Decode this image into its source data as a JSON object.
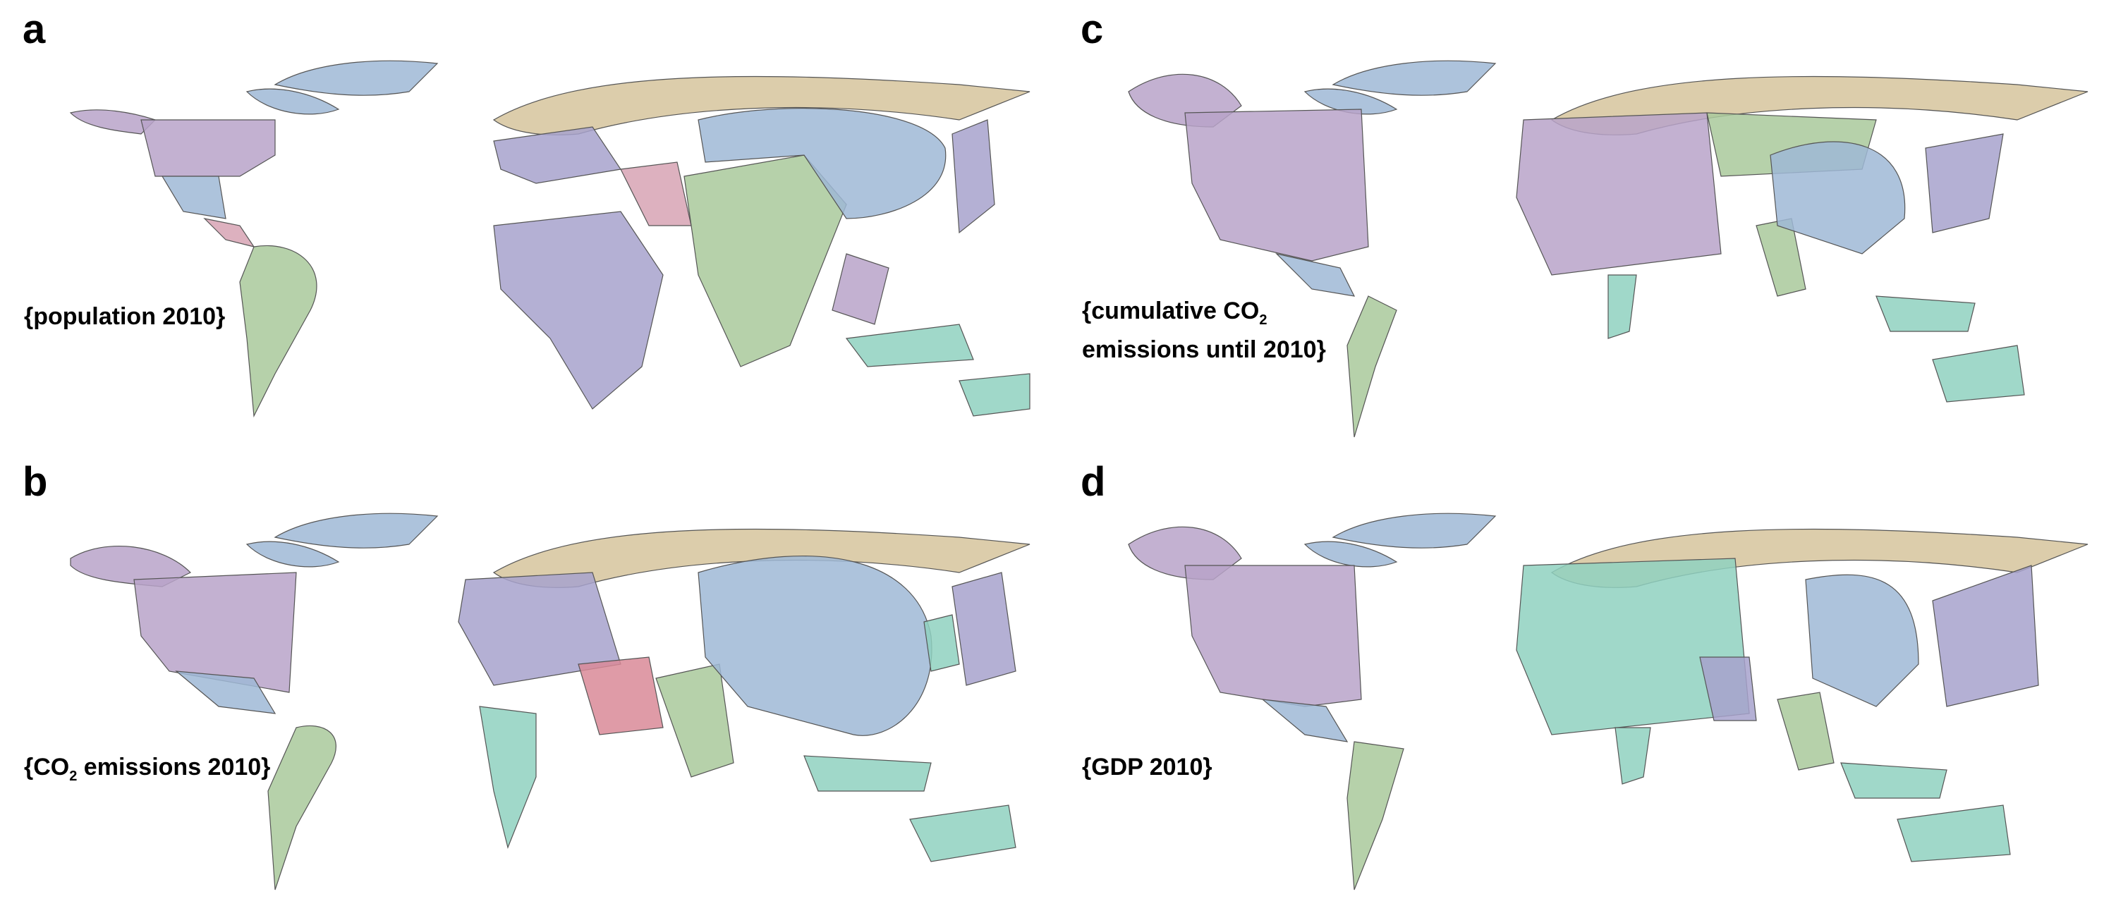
{
  "panels": [
    {
      "letter": "a",
      "caption": "{population 2010}",
      "variable": "population 2010"
    },
    {
      "letter": "b",
      "caption_pre": "{CO",
      "caption_sub": "2",
      "caption_post": " emissions 2010}",
      "variable": "CO2 emissions 2010"
    },
    {
      "letter": "c",
      "caption_line1_pre": "{cumulative CO",
      "caption_sub": "2",
      "caption_line2": "emissions until 2010}",
      "variable": "cumulative CO2 emissions until 2010"
    },
    {
      "letter": "d",
      "caption": "{GDP 2010}",
      "variable": "GDP 2010"
    }
  ],
  "colors": {
    "purple": "#b9a3c9",
    "blue": "#9fb8d6",
    "green": "#a9c99b",
    "tan": "#d6c49c",
    "teal": "#8fd1c0",
    "pink": "#d7a3b4",
    "lavender": "#a7a2cc",
    "rose": "#d98a98"
  }
}
